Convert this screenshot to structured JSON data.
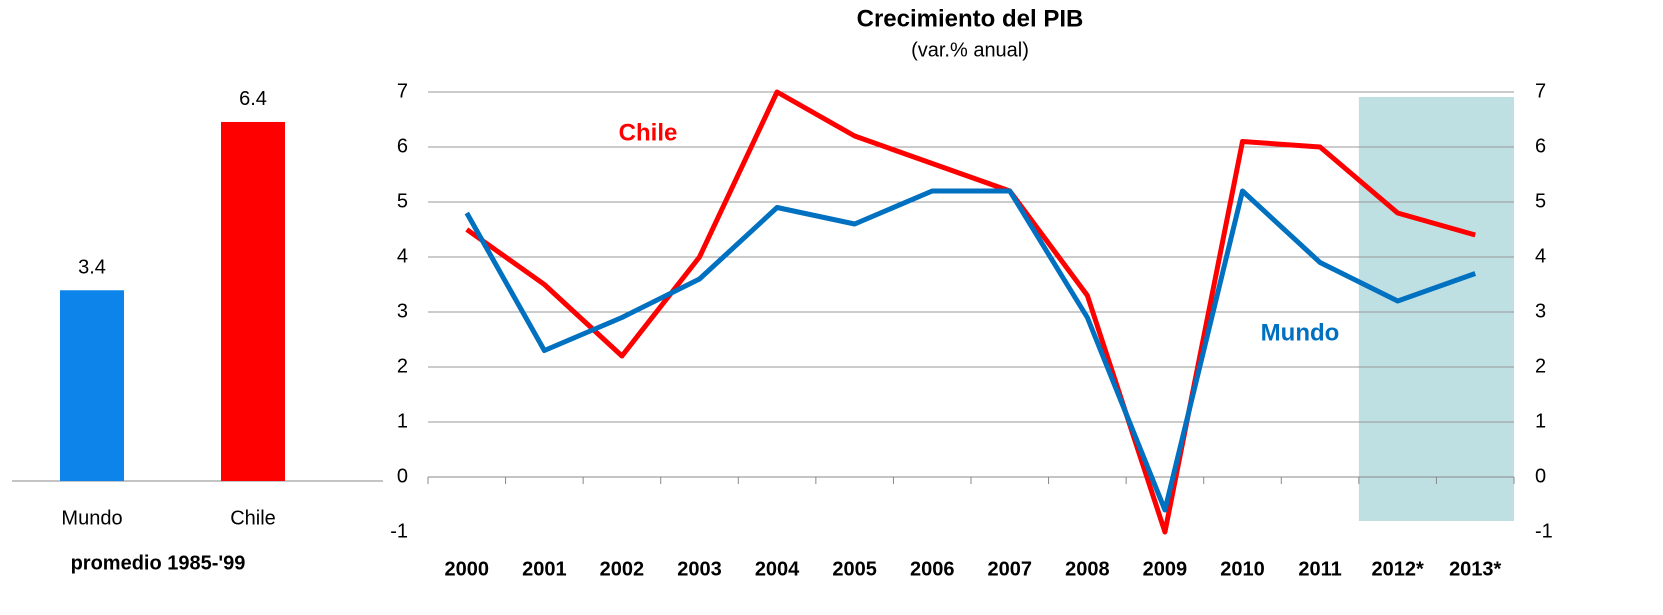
{
  "chart_data": [
    {
      "type": "bar",
      "xlabel": "promedio 1985-'99",
      "categories": [
        "Mundo",
        "Chile"
      ],
      "values": [
        3.4,
        6.4
      ],
      "colors": [
        "#0d84e9",
        "#ff0000"
      ]
    },
    {
      "type": "line",
      "title": "Crecimiento del PIB",
      "subtitle": "(var.% anual)",
      "categories": [
        "2000",
        "2001",
        "2002",
        "2003",
        "2004",
        "2005",
        "2006",
        "2007",
        "2008",
        "2009",
        "2010",
        "2011",
        "2012*",
        "2013*"
      ],
      "series": [
        {
          "name": "Chile",
          "color": "#ff0000",
          "values": [
            4.5,
            3.5,
            2.2,
            4.0,
            7.0,
            6.2,
            5.7,
            5.2,
            3.3,
            -1.0,
            6.1,
            6.0,
            4.8,
            4.4
          ]
        },
        {
          "name": "Mundo",
          "color": "#0070c0",
          "values": [
            4.8,
            2.3,
            2.9,
            3.6,
            4.9,
            4.6,
            5.2,
            5.2,
            2.9,
            -0.6,
            5.2,
            3.9,
            3.2,
            3.7
          ]
        }
      ],
      "ylim": [
        -1,
        7
      ],
      "yticks": [
        -1,
        0,
        1,
        2,
        3,
        4,
        5,
        6,
        7
      ],
      "y2lim": [
        -1,
        7
      ],
      "y2ticks": [
        -1,
        0,
        1,
        2,
        3,
        4,
        5,
        6,
        7
      ],
      "grid": true,
      "shade_from_index": 12,
      "shade_color": "#bfe0e3"
    }
  ]
}
